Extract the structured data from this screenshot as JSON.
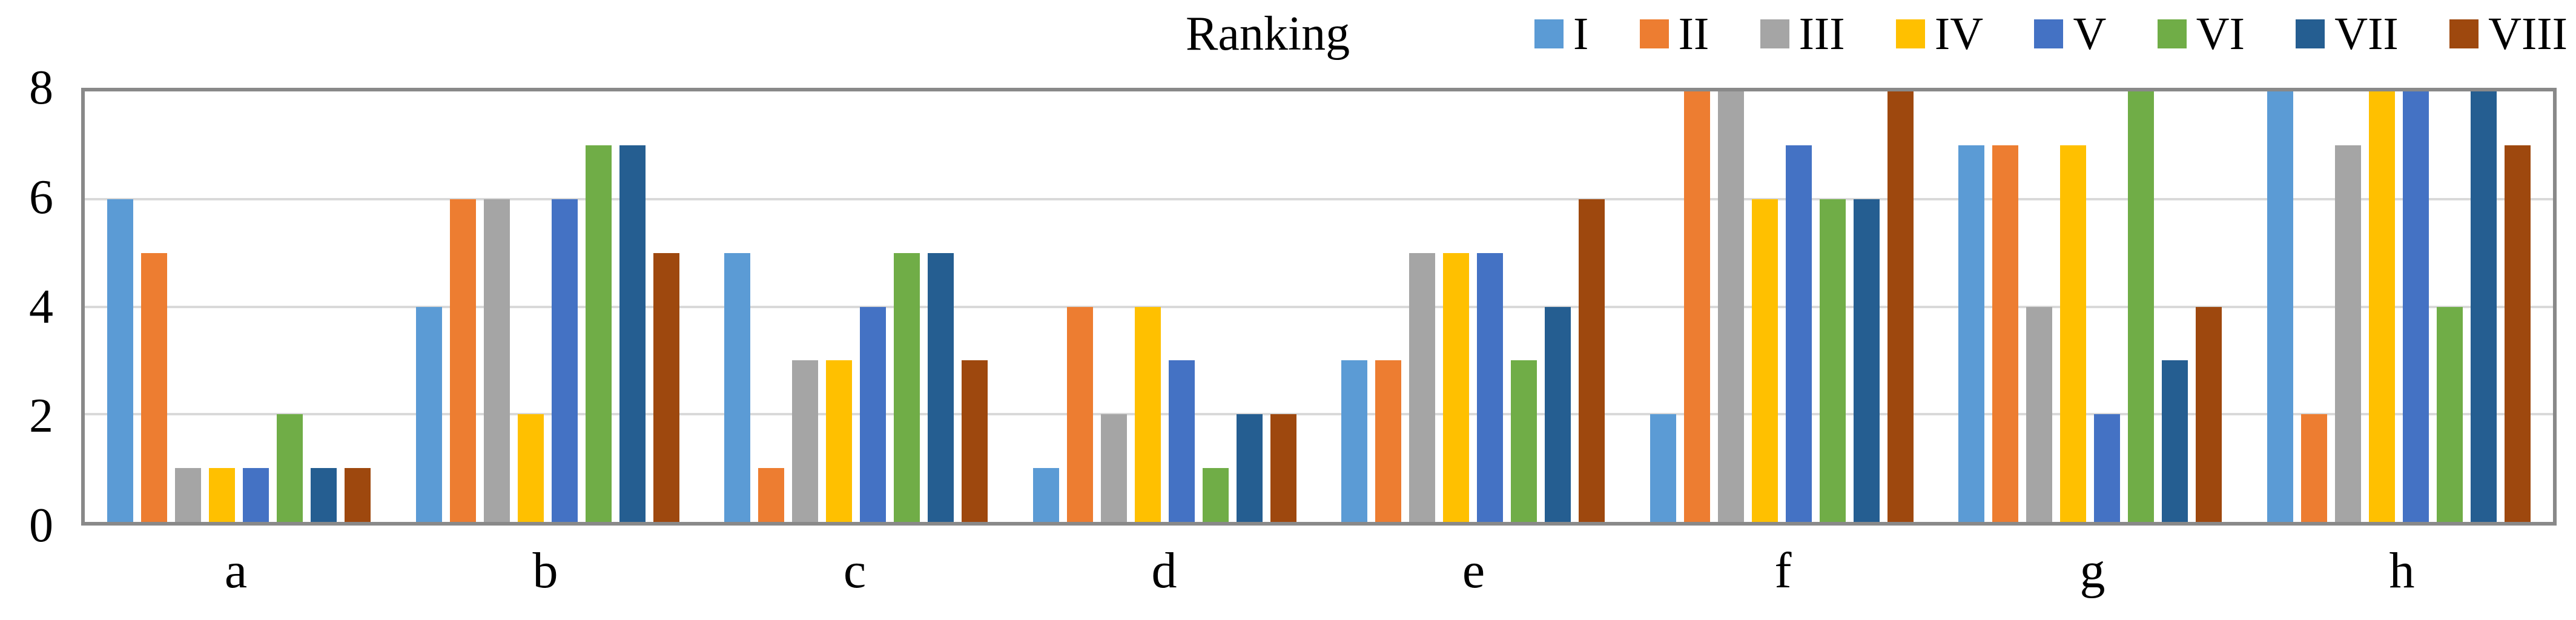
{
  "chart_data": {
    "type": "bar",
    "title": "Ranking",
    "categories": [
      "a",
      "b",
      "c",
      "d",
      "e",
      "f",
      "g",
      "h"
    ],
    "series": [
      {
        "name": "I",
        "color": "#5B9BD5",
        "values": [
          6,
          4,
          5,
          1,
          3,
          2,
          7,
          8
        ]
      },
      {
        "name": "II",
        "color": "#ED7D31",
        "values": [
          5,
          6,
          1,
          4,
          3,
          8,
          7,
          2
        ]
      },
      {
        "name": "III",
        "color": "#A5A5A5",
        "values": [
          1,
          6,
          3,
          2,
          5,
          8,
          4,
          7
        ]
      },
      {
        "name": "IV",
        "color": "#FFC000",
        "values": [
          1,
          2,
          3,
          4,
          5,
          6,
          7,
          8
        ]
      },
      {
        "name": "V",
        "color": "#4472C4",
        "values": [
          1,
          6,
          4,
          3,
          5,
          7,
          2,
          8
        ]
      },
      {
        "name": "VI",
        "color": "#70AD47",
        "values": [
          2,
          7,
          5,
          1,
          3,
          6,
          8,
          4
        ]
      },
      {
        "name": "VII",
        "color": "#255E91",
        "values": [
          1,
          7,
          5,
          2,
          4,
          6,
          3,
          8
        ]
      },
      {
        "name": "VIII",
        "color": "#9E480E",
        "values": [
          1,
          5,
          3,
          2,
          6,
          8,
          4,
          7
        ]
      }
    ],
    "xlabel": "",
    "ylabel": "",
    "ylim": [
      0,
      8
    ],
    "yticks": [
      0,
      2,
      4,
      6,
      8
    ],
    "grid": true,
    "legend_position": "top-right"
  },
  "colors": {
    "background": "#FFFFFF",
    "plot_border": "#898989",
    "gridline": "#D9D9D9",
    "text": "#000000"
  }
}
